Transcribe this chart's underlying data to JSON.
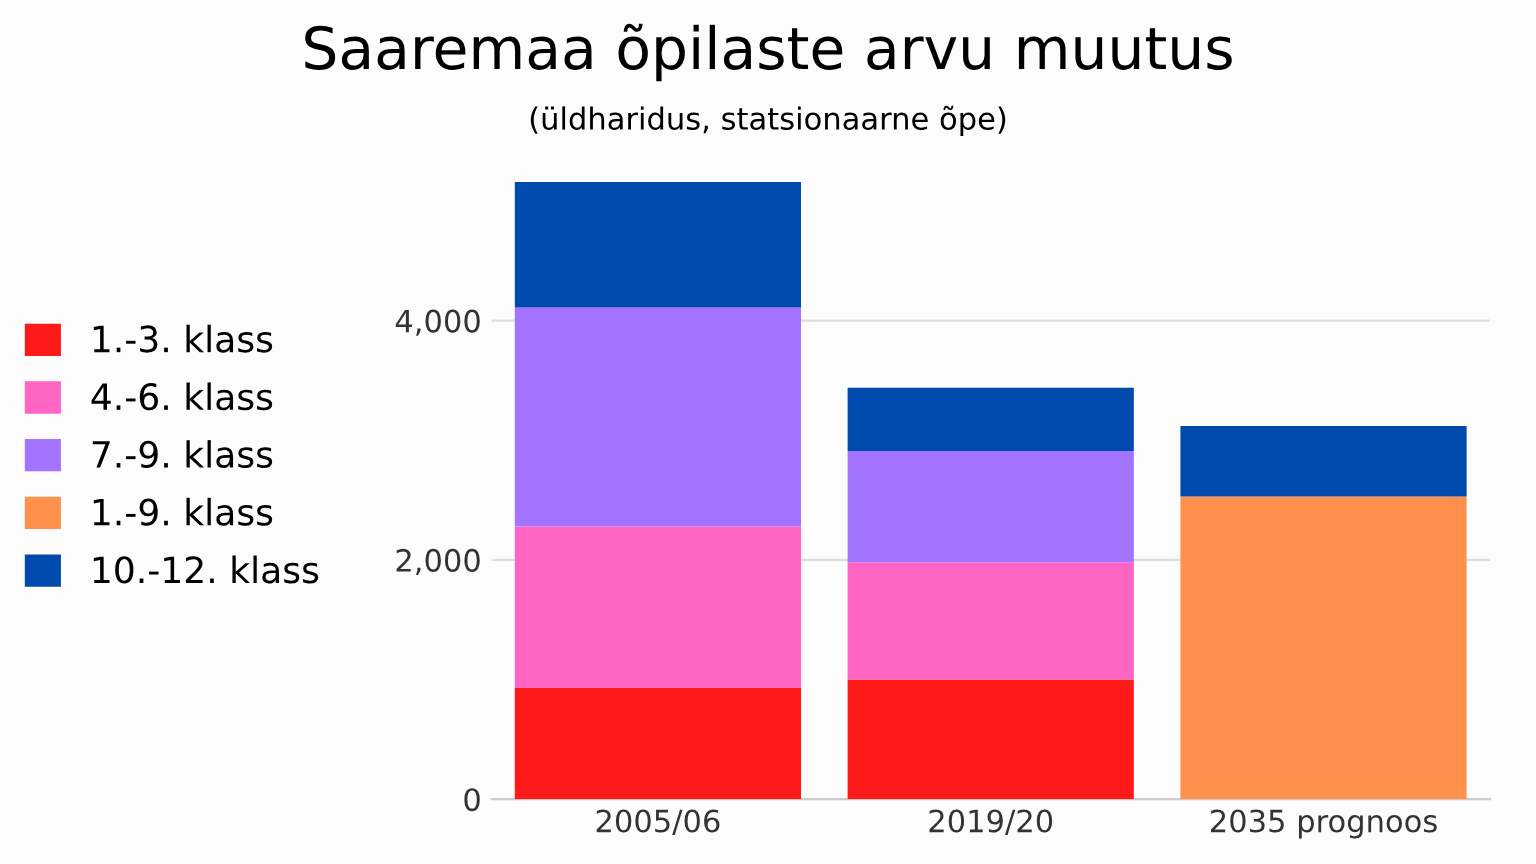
{
  "chart_data": {
    "type": "bar",
    "title": "Saaremaa õpilaste arvu muutus",
    "subtitle": "(üldharidus, statsionaarne õpe)",
    "categories": [
      "2005/06",
      "2019/20",
      "2035 prognoos"
    ],
    "stacked": true,
    "series": [
      {
        "name": "1.-3. klass",
        "color": "#ff1a1a",
        "values": [
          930,
          1000,
          null
        ]
      },
      {
        "name": "4.-6. klass",
        "color": "#ff66c4",
        "values": [
          1350,
          980,
          null
        ]
      },
      {
        "name": "7.-9. klass",
        "color": "#a374ff",
        "values": [
          1830,
          930,
          null
        ]
      },
      {
        "name": "1.-9. klass",
        "color": "#ff914d",
        "values": [
          null,
          null,
          2530
        ]
      },
      {
        "name": "10.-12. klass",
        "color": "#004aad",
        "values": [
          1050,
          530,
          590
        ]
      }
    ],
    "ylim": [
      0,
      5200
    ],
    "yticks": [
      {
        "value": 0,
        "label": "0"
      },
      {
        "value": 2000,
        "label": "2,000"
      },
      {
        "value": 4000,
        "label": "4,000"
      }
    ],
    "grid": "y",
    "legend": "left"
  }
}
